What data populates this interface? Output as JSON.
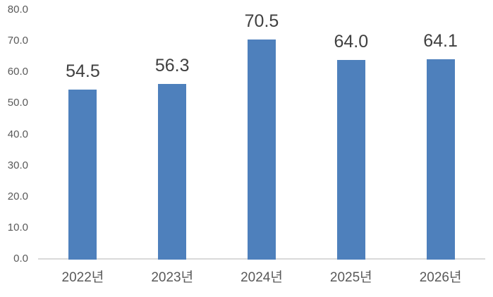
{
  "chart_data": {
    "type": "bar",
    "title": "",
    "xlabel": "",
    "ylabel": "",
    "categories": [
      "2022년",
      "2023년",
      "2024년",
      "2025년",
      "2026년"
    ],
    "values": [
      54.5,
      56.3,
      70.5,
      64.0,
      64.1
    ],
    "data_labels": [
      "54.5",
      "56.3",
      "70.5",
      "64.0",
      "64.1"
    ],
    "ylim": [
      0,
      80
    ],
    "ytick_step": 10,
    "ytick_labels": [
      "0.0",
      "10.0",
      "20.0",
      "30.0",
      "40.0",
      "50.0",
      "60.0",
      "70.0",
      "80.0"
    ],
    "grid": false,
    "legend": false,
    "colors": {
      "bar": "#4e80bc",
      "data_label": "#404040",
      "tick_label": "#595959",
      "axis_line": "#d9d9d9",
      "background": "#ffffff"
    }
  }
}
